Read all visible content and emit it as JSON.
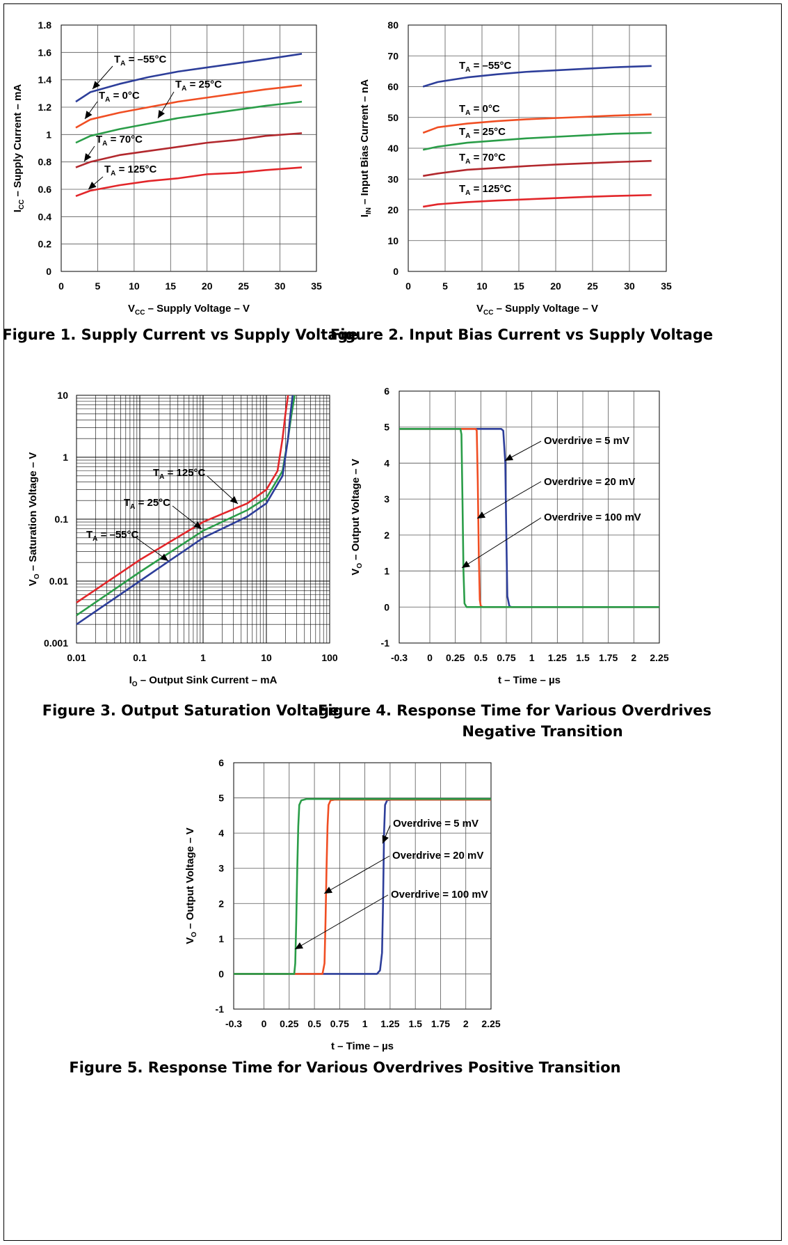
{
  "colors": {
    "blue": "#2d3e9a",
    "orange": "#f04e23",
    "green": "#2a9d48",
    "darkred": "#b2282d",
    "red": "#e2262a"
  },
  "chart_data": [
    {
      "id": "fig1",
      "type": "line",
      "caption": "Figure 1. Supply Current vs Supply Voltage",
      "xlabel": "V",
      "xlabel_sub": "CC",
      "xlabel_rest": " – Supply Voltage – V",
      "ylabel": "I",
      "ylabel_sub": "CC",
      "ylabel_rest": " – Supply Current – mA",
      "xlim": [
        0,
        35
      ],
      "ylim": [
        0,
        1.8
      ],
      "xticks": [
        "0",
        "5",
        "10",
        "15",
        "20",
        "25",
        "30",
        "35"
      ],
      "yticks": [
        "0",
        "0.2",
        "0.4",
        "0.6",
        "0.8",
        "1",
        "1.2",
        "1.4",
        "1.6",
        "1.8"
      ],
      "series": [
        {
          "name": "T A = –55°C",
          "color": "#2d3e9a",
          "x": [
            2,
            4,
            8,
            12,
            16,
            20,
            24,
            28,
            33
          ],
          "y": [
            1.24,
            1.31,
            1.37,
            1.42,
            1.46,
            1.49,
            1.52,
            1.55,
            1.59
          ]
        },
        {
          "name": "T A = 0°C",
          "color": "#f04e23",
          "x": [
            2,
            4,
            8,
            12,
            16,
            20,
            24,
            28,
            33
          ],
          "y": [
            1.05,
            1.11,
            1.16,
            1.2,
            1.24,
            1.27,
            1.3,
            1.33,
            1.36
          ]
        },
        {
          "name": "T A = 25°C",
          "color": "#2a9d48",
          "x": [
            2,
            4,
            8,
            12,
            16,
            20,
            24,
            28,
            33
          ],
          "y": [
            0.94,
            0.99,
            1.04,
            1.08,
            1.12,
            1.15,
            1.18,
            1.21,
            1.24
          ]
        },
        {
          "name": "T A = 70°C",
          "color": "#b2282d",
          "x": [
            2,
            4,
            8,
            12,
            16,
            20,
            24,
            28,
            33
          ],
          "y": [
            0.76,
            0.8,
            0.85,
            0.88,
            0.91,
            0.94,
            0.96,
            0.99,
            1.01
          ]
        },
        {
          "name": "T A = 125°C",
          "color": "#e2262a",
          "x": [
            2,
            4,
            8,
            12,
            16,
            20,
            24,
            28,
            33
          ],
          "y": [
            0.55,
            0.59,
            0.63,
            0.66,
            0.68,
            0.71,
            0.72,
            0.74,
            0.76
          ]
        }
      ],
      "annotations": [
        {
          "main": "T",
          "sub": "A",
          "rest": " = –55°C"
        },
        {
          "main": "T",
          "sub": "A",
          "rest": " = 0°C"
        },
        {
          "main": "T",
          "sub": "A",
          "rest": " = 25°C"
        },
        {
          "main": "T",
          "sub": "A",
          "rest": " = 70°C"
        },
        {
          "main": "T",
          "sub": "A",
          "rest": " = 125°C"
        }
      ]
    },
    {
      "id": "fig2",
      "type": "line",
      "caption": "Figure 2. Input Bias Current vs Supply Voltage",
      "xlabel": "V",
      "xlabel_sub": "CC",
      "xlabel_rest": " – Supply Voltage – V",
      "ylabel": "I",
      "ylabel_sub": "IN",
      "ylabel_rest": " – Input Bias Current – nA",
      "xlim": [
        0,
        35
      ],
      "ylim": [
        0,
        80
      ],
      "xticks": [
        "0",
        "5",
        "10",
        "15",
        "20",
        "25",
        "30",
        "35"
      ],
      "yticks": [
        "0",
        "10",
        "20",
        "30",
        "40",
        "50",
        "60",
        "70",
        "80"
      ],
      "series": [
        {
          "name": "T A = –55°C",
          "color": "#2d3e9a",
          "x": [
            2,
            4,
            8,
            12,
            16,
            20,
            24,
            28,
            33
          ],
          "y": [
            60,
            61.5,
            63,
            64,
            64.8,
            65.3,
            65.8,
            66.3,
            66.7
          ]
        },
        {
          "name": "T A = 0°C",
          "color": "#f04e23",
          "x": [
            2,
            4,
            8,
            12,
            16,
            20,
            24,
            28,
            33
          ],
          "y": [
            45,
            46.8,
            48,
            48.8,
            49.4,
            49.8,
            50.2,
            50.6,
            51
          ]
        },
        {
          "name": "T A = 25°C",
          "color": "#2a9d48",
          "x": [
            2,
            4,
            8,
            12,
            16,
            20,
            24,
            28,
            33
          ],
          "y": [
            39.5,
            40.5,
            41.8,
            42.5,
            43.2,
            43.7,
            44.2,
            44.7,
            45
          ]
        },
        {
          "name": "T A = 70°C",
          "color": "#b2282d",
          "x": [
            2,
            4,
            8,
            12,
            16,
            20,
            24,
            28,
            33
          ],
          "y": [
            31,
            31.8,
            33,
            33.6,
            34.2,
            34.7,
            35.1,
            35.5,
            35.9
          ]
        },
        {
          "name": "T A = 125°C",
          "color": "#e2262a",
          "x": [
            2,
            4,
            8,
            12,
            16,
            20,
            24,
            28,
            33
          ],
          "y": [
            21,
            21.8,
            22.5,
            23,
            23.4,
            23.8,
            24.2,
            24.5,
            24.8
          ]
        }
      ],
      "annotations": [
        {
          "main": "T",
          "sub": "A",
          "rest": " = –55°C"
        },
        {
          "main": "T",
          "sub": "A",
          "rest": " = 0°C"
        },
        {
          "main": "T",
          "sub": "A",
          "rest": " = 25°C"
        },
        {
          "main": "T",
          "sub": "A",
          "rest": " = 70°C"
        },
        {
          "main": "T",
          "sub": "A",
          "rest": " = 125°C"
        }
      ]
    },
    {
      "id": "fig3",
      "type": "line",
      "scale": "log-log",
      "caption": "Figure 3. Output Saturation Voltage",
      "xlabel": "I",
      "xlabel_sub": "O",
      "xlabel_rest": " – Output Sink Current – mA",
      "ylabel": "V",
      "ylabel_sub": "O",
      "ylabel_rest": " – Saturation Voltage – V",
      "xlim": [
        0.01,
        100
      ],
      "ylim": [
        0.001,
        10
      ],
      "xticks": [
        "0.01",
        "0.1",
        "1",
        "10",
        "100"
      ],
      "yticks": [
        "0.001",
        "0.01",
        "0.1",
        "1",
        "10"
      ],
      "series": [
        {
          "name": "T A = 125°C",
          "color": "#e2262a",
          "x": [
            0.01,
            0.1,
            1,
            5,
            10,
            15,
            18,
            20,
            22
          ],
          "y": [
            0.0045,
            0.022,
            0.09,
            0.18,
            0.3,
            0.6,
            2,
            5,
            10
          ]
        },
        {
          "name": "T A = 25°C",
          "color": "#2a9d48",
          "x": [
            0.01,
            0.1,
            1,
            5,
            10,
            18,
            22,
            25,
            28
          ],
          "y": [
            0.0028,
            0.014,
            0.065,
            0.14,
            0.22,
            0.6,
            2,
            5,
            10
          ]
        },
        {
          "name": "T A = –55°C",
          "color": "#2d3e9a",
          "x": [
            0.01,
            0.1,
            1,
            5,
            10,
            18,
            22,
            24,
            26
          ],
          "y": [
            0.002,
            0.01,
            0.05,
            0.11,
            0.18,
            0.5,
            2,
            5,
            10
          ]
        }
      ],
      "annotations": [
        {
          "main": "T",
          "sub": "A",
          "rest": " = 125°C"
        },
        {
          "main": "T",
          "sub": "A",
          "rest": " = 25°C"
        },
        {
          "main": "T",
          "sub": "A",
          "rest": " = –55°C"
        }
      ]
    },
    {
      "id": "fig4",
      "type": "line",
      "caption": "Figure 4. Response Time for Various Overdrives",
      "caption2": "Negative Transition",
      "xlabel": "t – Time – µs",
      "ylabel": "V",
      "ylabel_sub": "O",
      "ylabel_rest": " – Output Voltage – V",
      "xlim": [
        -0.3,
        2.25
      ],
      "ylim": [
        -1,
        6
      ],
      "xticks": [
        "-0.3",
        "0",
        "0.25",
        "0.5",
        "0.75",
        "1",
        "1.25",
        "1.5",
        "1.75",
        "2",
        "2.25"
      ],
      "yticks": [
        "-1",
        "0",
        "1",
        "2",
        "3",
        "4",
        "5",
        "6"
      ],
      "series": [
        {
          "name": "Overdrive = 5 mV",
          "color": "#2d3e9a",
          "x": [
            -0.3,
            0.7,
            0.72,
            0.74,
            0.75,
            0.76,
            0.78,
            0.8,
            2.25
          ],
          "y": [
            4.95,
            4.95,
            4.9,
            4,
            2,
            0.3,
            0.02,
            0,
            0
          ]
        },
        {
          "name": "Overdrive = 20 mV",
          "color": "#f04e23",
          "x": [
            -0.3,
            0.45,
            0.46,
            0.47,
            0.48,
            0.49,
            0.5,
            0.52,
            2.25
          ],
          "y": [
            4.95,
            4.95,
            4.9,
            3.5,
            1.5,
            0.2,
            0.02,
            0,
            0
          ]
        },
        {
          "name": "Overdrive = 100 mV",
          "color": "#2a9d48",
          "x": [
            -0.3,
            0.3,
            0.31,
            0.32,
            0.33,
            0.34,
            0.36,
            0.4,
            2.25
          ],
          "y": [
            4.95,
            4.95,
            4.8,
            3,
            1,
            0.1,
            0,
            0,
            0
          ]
        }
      ],
      "annotations": [
        {
          "text": "Overdrive = 5 mV"
        },
        {
          "text": "Overdrive = 20 mV"
        },
        {
          "text": "Overdrive = 100 mV"
        }
      ]
    },
    {
      "id": "fig5",
      "type": "line",
      "caption": "Figure 5. Response Time for Various Overdrives Positive Transition",
      "xlabel": "t – Time – µs",
      "ylabel": "V",
      "ylabel_sub": "O",
      "ylabel_rest": " – Output Voltage – V",
      "xlim": [
        -0.3,
        2.25
      ],
      "ylim": [
        -1,
        6
      ],
      "xticks": [
        "-0.3",
        "0",
        "0.25",
        "0.5",
        "0.75",
        "1",
        "1.25",
        "1.5",
        "1.75",
        "2",
        "2.25"
      ],
      "yticks": [
        "-1",
        "0",
        "1",
        "2",
        "3",
        "4",
        "5",
        "6"
      ],
      "series": [
        {
          "name": "Overdrive = 5 mV",
          "color": "#2d3e9a",
          "x": [
            -0.3,
            1.12,
            1.15,
            1.17,
            1.18,
            1.19,
            1.2,
            1.22,
            1.26,
            2.25
          ],
          "y": [
            0,
            0,
            0.1,
            0.6,
            2,
            4,
            4.8,
            4.93,
            4.95,
            4.95
          ]
        },
        {
          "name": "Overdrive = 20 mV",
          "color": "#f04e23",
          "x": [
            -0.3,
            0.58,
            0.6,
            0.61,
            0.62,
            0.63,
            0.64,
            0.66,
            0.7,
            2.25
          ],
          "y": [
            0,
            0,
            0.3,
            1.5,
            3,
            4.2,
            4.8,
            4.93,
            4.95,
            4.95
          ]
        },
        {
          "name": "Overdrive = 100 mV",
          "color": "#2a9d48",
          "x": [
            -0.3,
            0.3,
            0.31,
            0.32,
            0.33,
            0.34,
            0.35,
            0.37,
            0.42,
            2.25
          ],
          "y": [
            0,
            0,
            0.3,
            1.5,
            3,
            4.2,
            4.8,
            4.93,
            4.97,
            4.97
          ]
        }
      ],
      "annotations": [
        {
          "text": "Overdrive = 5 mV"
        },
        {
          "text": "Overdrive = 20 mV"
        },
        {
          "text": "Overdrive = 100 mV"
        }
      ]
    }
  ]
}
